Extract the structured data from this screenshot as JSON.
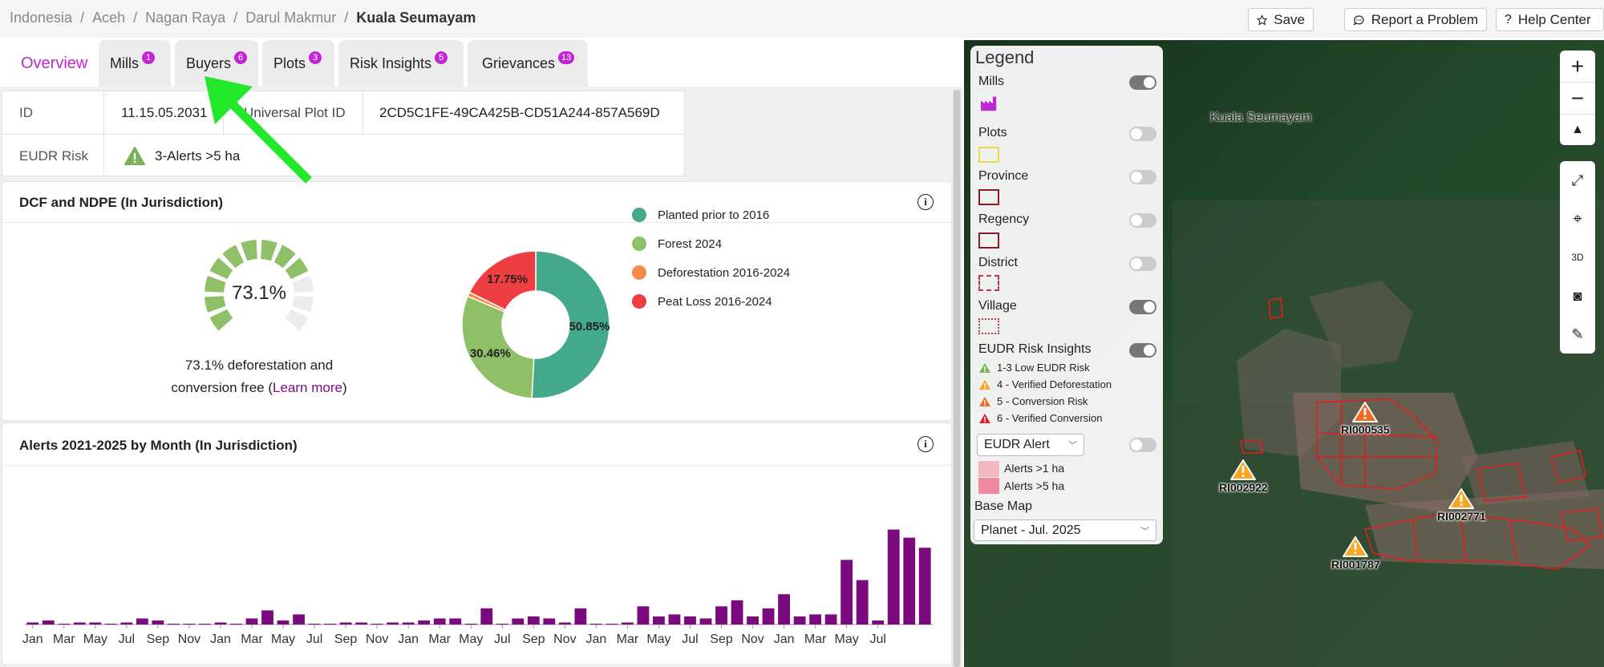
{
  "breadcrumb": [
    "Indonesia",
    "Aceh",
    "Nagan Raya",
    "Darul Makmur",
    "Kuala Seumayam"
  ],
  "breadcrumb_separator": "/",
  "header_buttons": {
    "save": "Save",
    "report": "Report a Problem",
    "help": "Help Center"
  },
  "tabs": [
    {
      "label": "Overview",
      "badge": null
    },
    {
      "label": "Mills",
      "badge": "1"
    },
    {
      "label": "Buyers",
      "badge": "6"
    },
    {
      "label": "Plots",
      "badge": "3"
    },
    {
      "label": "Risk Insights",
      "badge": "5"
    },
    {
      "label": "Grievances",
      "badge": "13"
    }
  ],
  "info": {
    "id_label": "ID",
    "id_value": "11.15.05.2031",
    "upi_label": "Universal Plot ID",
    "upi_value": "2CD5C1FE-49CA425B-CD51A244-857A569D",
    "eudr_label": "EUDR Risk",
    "eudr_value": "3-Alerts >5 ha"
  },
  "dcf_card": {
    "title": "DCF and NDPE (In Jurisdiction)",
    "gauge_value": "73.1%",
    "gauge_fraction": 0.731,
    "caption_line1": "73.1% deforestation and",
    "caption_line2_pre": "conversion free (",
    "caption_link": "Learn more",
    "caption_line2_post": ")"
  },
  "donut": {
    "slices": [
      {
        "label": "Planted prior to 2016",
        "value": 50.85,
        "display": "50.85%",
        "color": "#43a98a"
      },
      {
        "label": "Forest 2024",
        "value": 30.46,
        "display": "30.46%",
        "color": "#8fbf66"
      },
      {
        "label": "Deforestation 2016-2024",
        "value": 0.94,
        "display": "",
        "color": "#f58b4a"
      },
      {
        "label": "Peat Loss 2016-2024",
        "value": 17.75,
        "display": "17.75%",
        "color": "#ef3e42"
      }
    ]
  },
  "alerts_card": {
    "title": "Alerts 2021-2025 by Month (In Jurisdiction)"
  },
  "chart_data": {
    "type": "bar",
    "title": "Alerts 2021-2025 by Month (In Jurisdiction)",
    "color": "#7b0a7e",
    "tick_labels": [
      "Jan",
      "Mar",
      "May",
      "Jul",
      "Sep",
      "Nov",
      "Jan",
      "Mar",
      "May",
      "Jul",
      "Sep",
      "Nov",
      "Jan",
      "Mar",
      "May",
      "Jul",
      "Sep",
      "Nov",
      "Jan",
      "Mar",
      "May",
      "Jul",
      "Sep",
      "Nov",
      "Jan",
      "Mar",
      "May",
      "Jul"
    ],
    "values": [
      1,
      2,
      0,
      1,
      1,
      0,
      1,
      3,
      2,
      0,
      0,
      0,
      1,
      0,
      3,
      7,
      2,
      5,
      0,
      0,
      1,
      1,
      0,
      1,
      1,
      2,
      3,
      3,
      0,
      8,
      0,
      3,
      4,
      3,
      1,
      8,
      0,
      0,
      1,
      9,
      4,
      5,
      4,
      3,
      9,
      12,
      4,
      8,
      15,
      4,
      5,
      5,
      32,
      22,
      2,
      47,
      43,
      38
    ],
    "ylim": [
      0,
      50
    ],
    "grid": false
  },
  "legend": {
    "title": "Legend",
    "layers": [
      {
        "label": "Mills",
        "on": true
      },
      {
        "label": "Plots",
        "on": false
      },
      {
        "label": "Province",
        "on": false
      },
      {
        "label": "Regency",
        "on": false
      },
      {
        "label": "District",
        "on": false
      },
      {
        "label": "Village",
        "on": true
      },
      {
        "label": "EUDR Risk Insights",
        "on": true
      }
    ],
    "risks": [
      {
        "label": "1-3 Low EUDR Risk",
        "color": "#7bb35a"
      },
      {
        "label": "4 - Verified Deforestation",
        "color": "#f5a623"
      },
      {
        "label": "5 - Conversion Risk",
        "color": "#f06a1f"
      },
      {
        "label": "6 - Verified Conversion",
        "color": "#e0242b"
      }
    ],
    "alert_dropdown": "EUDR Alert",
    "alert_on": false,
    "alerts": [
      {
        "label": "Alerts >1 ha",
        "color": "#f4b7c2"
      },
      {
        "label": "Alerts >5 ha",
        "color": "#ee8aa0"
      }
    ],
    "basemap_label": "Base Map",
    "basemap_value": "Planet - Jul. 2025"
  },
  "map": {
    "place_label": "Kuala Seumayam",
    "markers": [
      {
        "id": "RI000535",
        "color": "#f06a1f"
      },
      {
        "id": "RI002922",
        "color": "#f5a623"
      },
      {
        "id": "RI002771",
        "color": "#f5a623"
      },
      {
        "id": "RI001787",
        "color": "#f5a623"
      }
    ]
  }
}
